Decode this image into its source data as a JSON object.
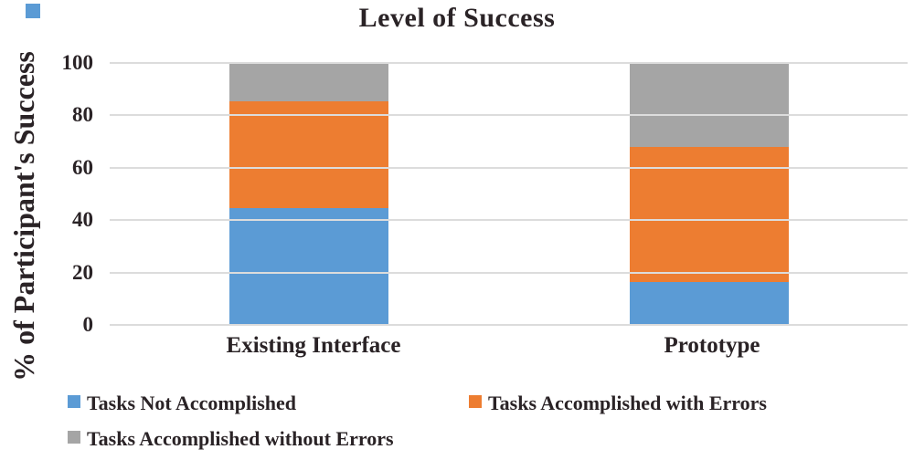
{
  "figure": {
    "title": "Level of Success",
    "y_axis_title": "% of Participant's Success"
  },
  "chart_data": {
    "type": "bar",
    "subtype": "stacked-vertical",
    "title": "Level of Success",
    "xlabel": "",
    "ylabel": "% of Participant's Success",
    "categories": [
      "Existing Interface",
      "Prototype"
    ],
    "series": [
      {
        "name": "Tasks Not Accomplished",
        "color": "#5B9BD5",
        "values": [
          44.5,
          16.5
        ]
      },
      {
        "name": "Tasks Accomplished with Errors",
        "color": "#ED7D31",
        "values": [
          41.0,
          51.5
        ]
      },
      {
        "name": "Tasks Accomplished without Errors",
        "color": "#A5A5A5",
        "values": [
          14.5,
          32.0
        ]
      }
    ],
    "stack_totals": [
      100,
      100
    ],
    "ylim": [
      0,
      100
    ],
    "yticks": [
      0,
      20,
      40,
      60,
      80,
      100
    ],
    "grid": true,
    "legend_position": "bottom"
  },
  "colors": {
    "bar_blue": "#5B9BD5",
    "bar_orange": "#ED7D31",
    "bar_gray": "#A5A5A5",
    "gridline": "#dcdcdc",
    "text": "#2a2326",
    "corner_square": "#5B9BD5",
    "background": "#ffffff"
  }
}
